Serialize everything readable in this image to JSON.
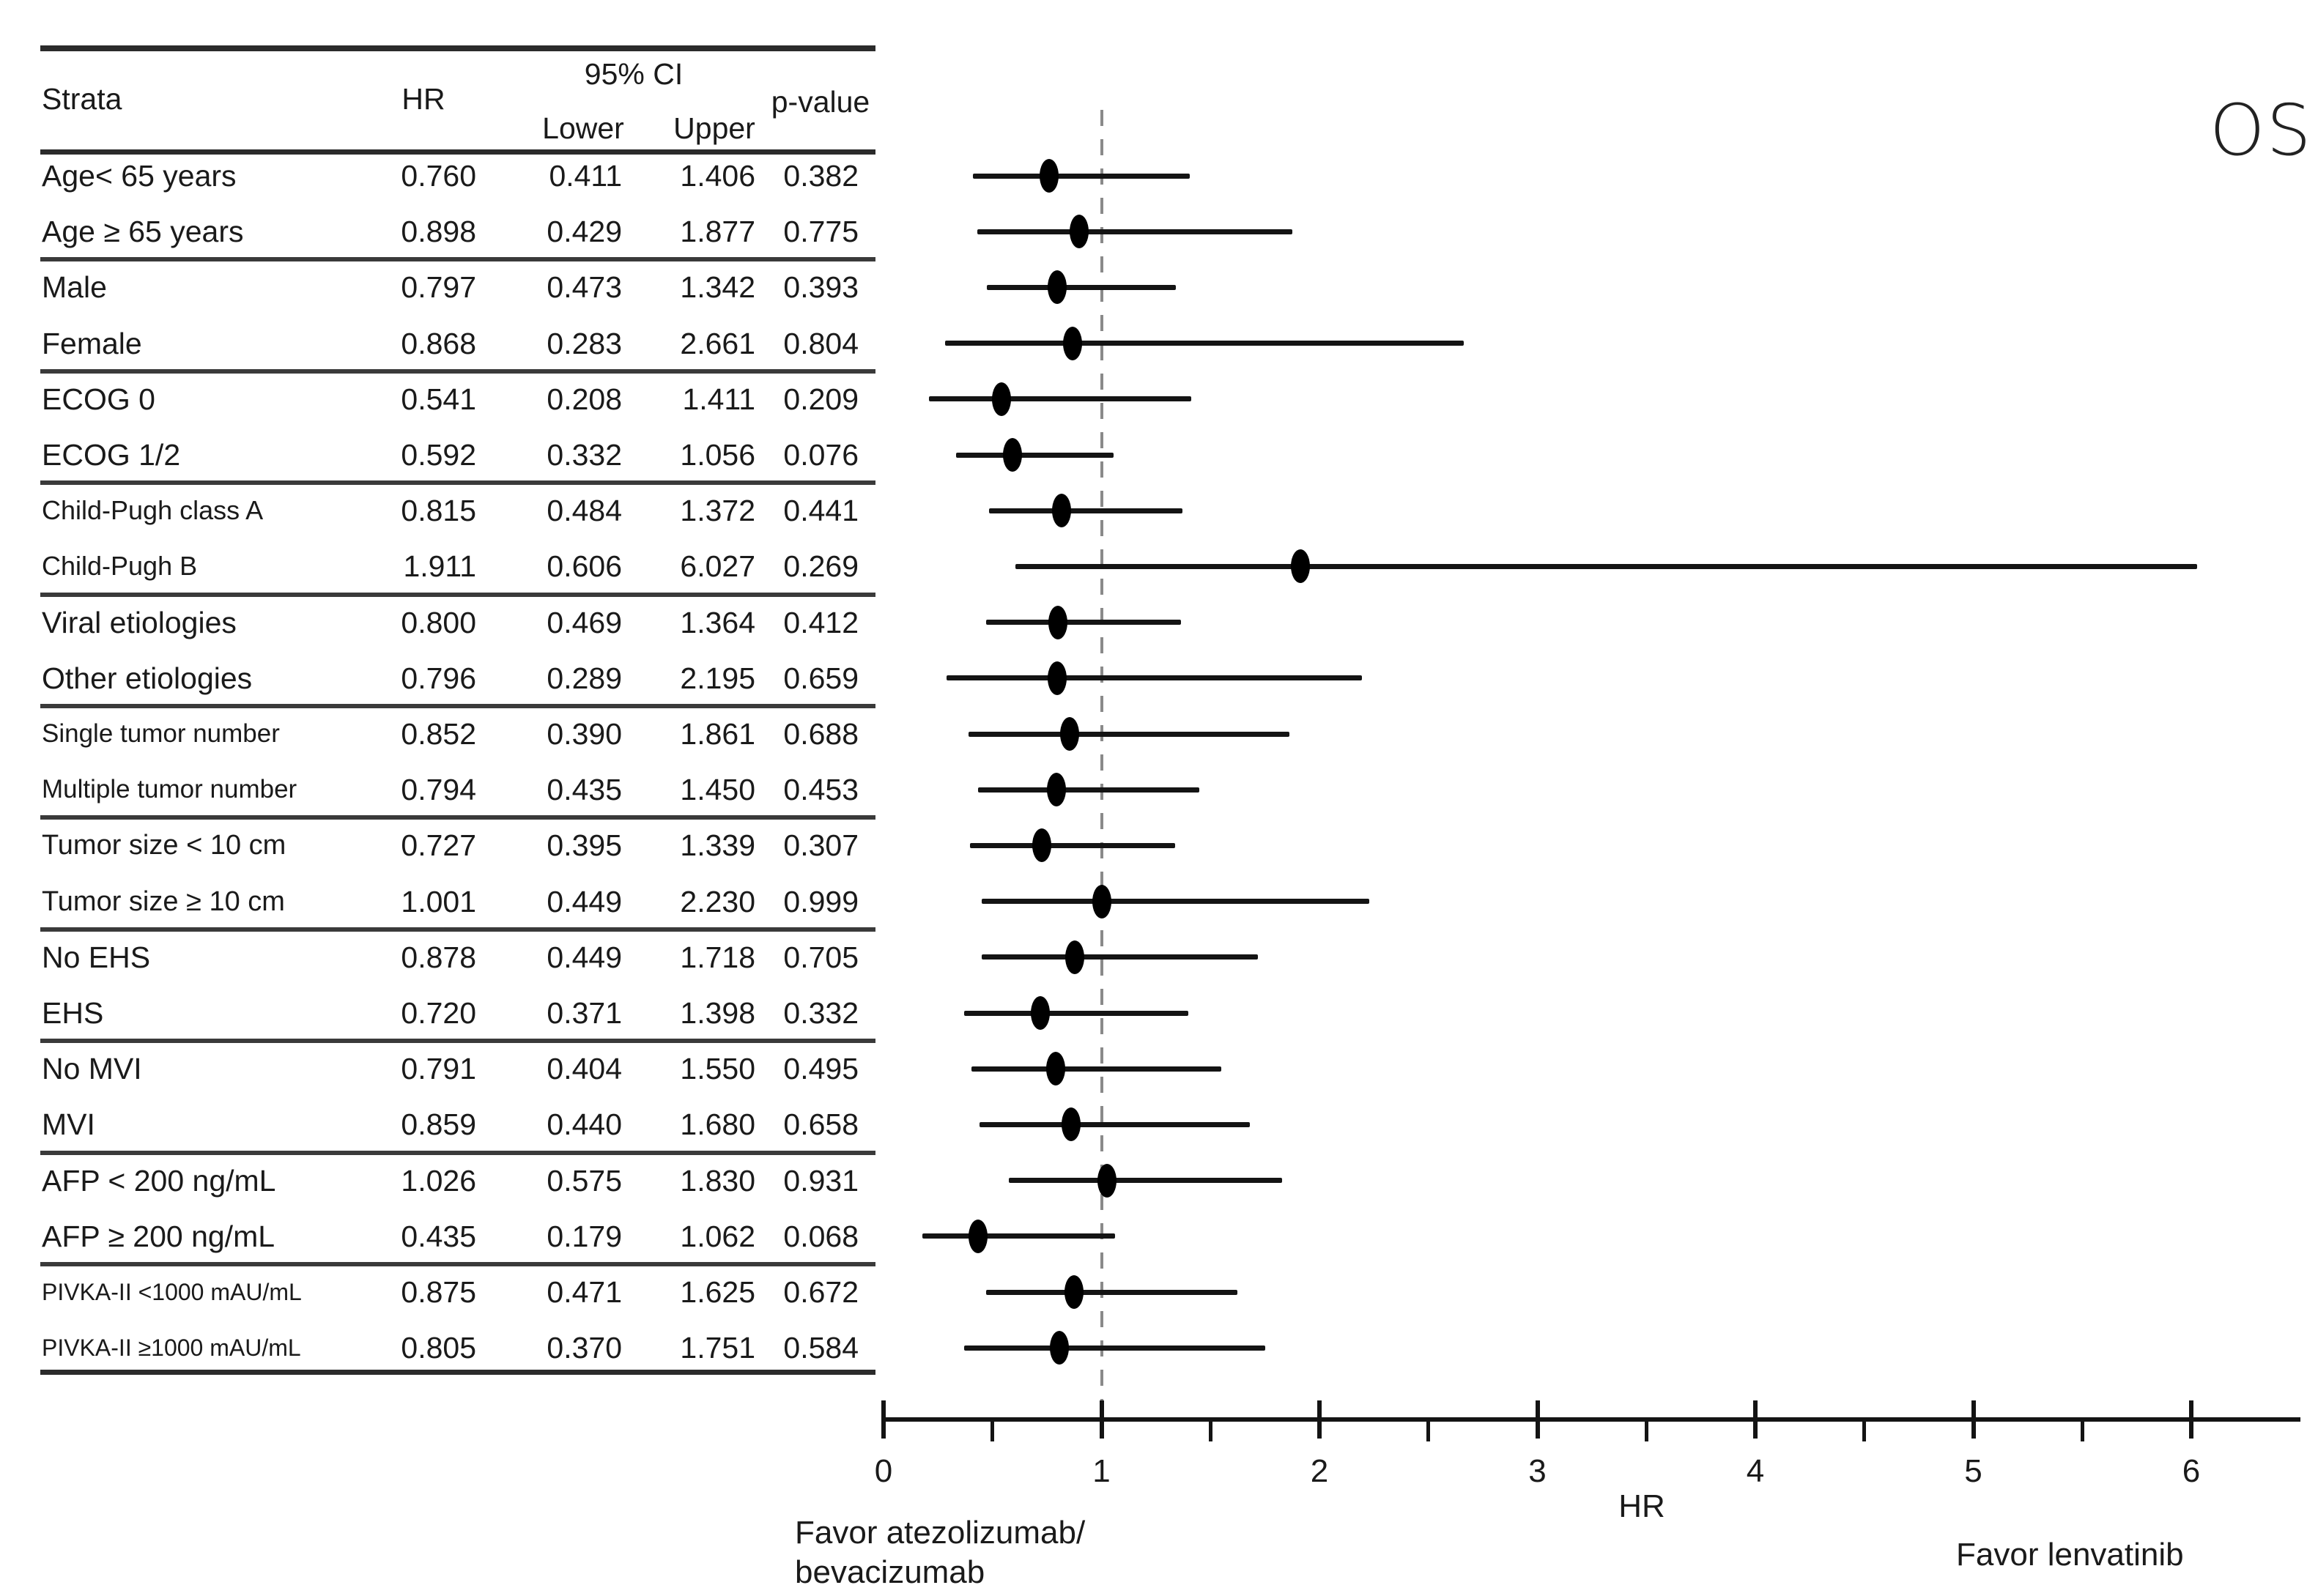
{
  "figure_title": "OS",
  "table": {
    "col_headers": {
      "strata": "Strata",
      "hr": "HR",
      "ci": "95% CI",
      "ci_lower": "Lower",
      "ci_upper": "Upper",
      "pvalue": "p-value"
    }
  },
  "axis": {
    "label": "HR"
  },
  "annotations": {
    "favor_left_line1": "Favor atezolizumab/",
    "favor_left_line2": "bevacizumab",
    "favor_right": "Favor lenvatinib"
  },
  "chart_data": {
    "type": "forest",
    "title": "OS",
    "xlabel": "HR",
    "xlim": [
      0,
      6.5
    ],
    "xticks": [
      0,
      1,
      2,
      3,
      4,
      5,
      6
    ],
    "minor_ticks": [
      0.5,
      1.5,
      2.5,
      3.5,
      4.5,
      5.5
    ],
    "reference_line": 1,
    "grid": false,
    "favor_left": "Favor atezolizumab/ bevacizumab",
    "favor_right": "Favor lenvatinib",
    "group_size": 2,
    "rows": [
      {
        "strata": "Age< 65 years",
        "hr": 0.76,
        "lower": 0.411,
        "upper": 1.406,
        "pvalue": 0.382
      },
      {
        "strata": "Age ≥ 65 years",
        "hr": 0.898,
        "lower": 0.429,
        "upper": 1.877,
        "pvalue": 0.775
      },
      {
        "strata": "Male",
        "hr": 0.797,
        "lower": 0.473,
        "upper": 1.342,
        "pvalue": 0.393
      },
      {
        "strata": "Female",
        "hr": 0.868,
        "lower": 0.283,
        "upper": 2.661,
        "pvalue": 0.804
      },
      {
        "strata": "ECOG 0",
        "hr": 0.541,
        "lower": 0.208,
        "upper": 1.411,
        "pvalue": 0.209
      },
      {
        "strata": "ECOG 1/2",
        "hr": 0.592,
        "lower": 0.332,
        "upper": 1.056,
        "pvalue": 0.076
      },
      {
        "strata": "Child-Pugh class A",
        "hr": 0.815,
        "lower": 0.484,
        "upper": 1.372,
        "pvalue": 0.441
      },
      {
        "strata": "Child-Pugh B",
        "hr": 1.911,
        "lower": 0.606,
        "upper": 6.027,
        "pvalue": 0.269
      },
      {
        "strata": "Viral etiologies",
        "hr": 0.8,
        "lower": 0.469,
        "upper": 1.364,
        "pvalue": 0.412
      },
      {
        "strata": "Other etiologies",
        "hr": 0.796,
        "lower": 0.289,
        "upper": 2.195,
        "pvalue": 0.659
      },
      {
        "strata": "Single tumor number",
        "hr": 0.852,
        "lower": 0.39,
        "upper": 1.861,
        "pvalue": 0.688
      },
      {
        "strata": "Multiple tumor number",
        "hr": 0.794,
        "lower": 0.435,
        "upper": 1.45,
        "pvalue": 0.453
      },
      {
        "strata": "Tumor size < 10 cm",
        "hr": 0.727,
        "lower": 0.395,
        "upper": 1.339,
        "pvalue": 0.307
      },
      {
        "strata": "Tumor size ≥ 10 cm",
        "hr": 1.001,
        "lower": 0.449,
        "upper": 2.23,
        "pvalue": 0.999
      },
      {
        "strata": "No EHS",
        "hr": 0.878,
        "lower": 0.449,
        "upper": 1.718,
        "pvalue": 0.705
      },
      {
        "strata": "EHS",
        "hr": 0.72,
        "lower": 0.371,
        "upper": 1.398,
        "pvalue": 0.332
      },
      {
        "strata": "No MVI",
        "hr": 0.791,
        "lower": 0.404,
        "upper": 1.55,
        "pvalue": 0.495
      },
      {
        "strata": "MVI",
        "hr": 0.859,
        "lower": 0.44,
        "upper": 1.68,
        "pvalue": 0.658
      },
      {
        "strata": "AFP < 200 ng/mL",
        "hr": 1.026,
        "lower": 0.575,
        "upper": 1.83,
        "pvalue": 0.931
      },
      {
        "strata": "AFP ≥ 200 ng/mL",
        "hr": 0.435,
        "lower": 0.179,
        "upper": 1.062,
        "pvalue": 0.068
      },
      {
        "strata": "PIVKA-II <1000 mAU/mL",
        "hr": 0.875,
        "lower": 0.471,
        "upper": 1.625,
        "pvalue": 0.672
      },
      {
        "strata": "PIVKA-II ≥1000 mAU/mL",
        "hr": 0.805,
        "lower": 0.37,
        "upper": 1.751,
        "pvalue": 0.584
      }
    ]
  }
}
